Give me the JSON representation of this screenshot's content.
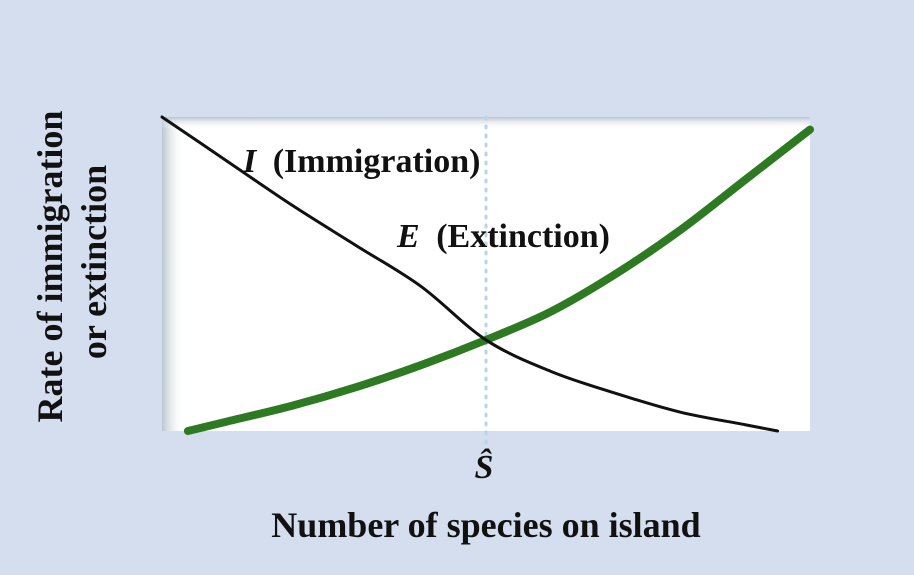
{
  "chart_data": {
    "type": "line",
    "title": "",
    "xlabel": "Number of species on island",
    "ylabel": "Rate of immigration or extinction",
    "ylabel_lines": [
      "Rate of immigration",
      "or extinction"
    ],
    "x_tick_label": "Ŝ",
    "xlim": [
      0,
      1
    ],
    "ylim": [
      0,
      1
    ],
    "grid": false,
    "equilibrium_x": 0.5,
    "series": [
      {
        "key": "immigration",
        "label_italic": "I",
        "label_rest": "(Immigration)",
        "color": "#111111",
        "x": [
          0,
          0.1,
          0.2,
          0.3,
          0.4,
          0.5,
          0.6,
          0.7,
          0.8,
          0.9,
          0.95
        ],
        "y": [
          1.0,
          0.86,
          0.72,
          0.59,
          0.46,
          0.29,
          0.19,
          0.12,
          0.06,
          0.02,
          0.0
        ]
      },
      {
        "key": "extinction",
        "label_italic": "E",
        "label_rest": "(Extinction)",
        "color": "#2e7a22",
        "x": [
          0.04,
          0.1,
          0.2,
          0.3,
          0.4,
          0.5,
          0.6,
          0.7,
          0.8,
          0.9,
          1.0
        ],
        "y": [
          0.0,
          0.03,
          0.08,
          0.14,
          0.21,
          0.29,
          0.38,
          0.5,
          0.64,
          0.8,
          0.96
        ]
      }
    ]
  },
  "colors": {
    "background": "#d5deef",
    "plot_area": "#ffffff",
    "plot_edge_shade": "#b9c6cf",
    "equilibrium_line": "#b8d3ea"
  }
}
